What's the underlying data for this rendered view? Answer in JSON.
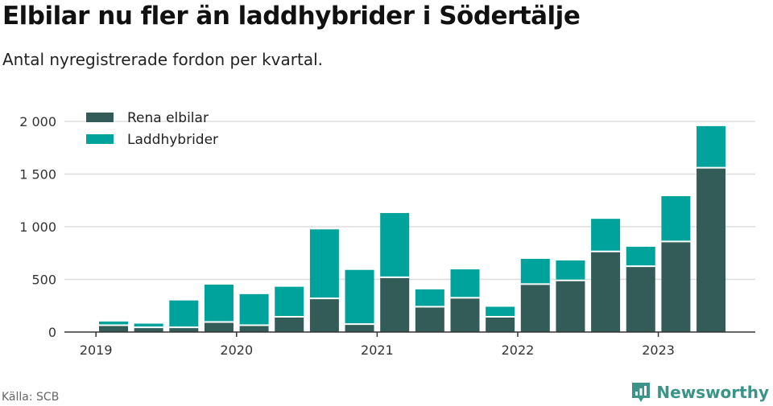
{
  "title": "Elbilar nu fler än laddhybrider i Södertälje",
  "subtitle": "Antal nyregistrerade fordon per kvartal.",
  "source": "Källa: SCB",
  "brand": "Newsworthy",
  "colors": {
    "ev": "#335c58",
    "phev": "#00a39b",
    "grid": "#dddddd",
    "axis": "#333333",
    "brand": "#3a9487"
  },
  "chart_data": {
    "type": "bar",
    "stacked": true,
    "title": "Elbilar nu fler än laddhybrider i Södertälje",
    "xlabel": "",
    "ylabel": "",
    "ylim": [
      0,
      2000
    ],
    "y_ticks": [
      0,
      500,
      1000,
      1500,
      2000
    ],
    "y_tick_labels": [
      "0",
      "500",
      "1 000",
      "1 500",
      "2 000"
    ],
    "x_tick_labels": [
      "2019",
      "2020",
      "2021",
      "2022",
      "2023"
    ],
    "x_tick_at_bar": [
      -0.5,
      3.5,
      7.5,
      11.5,
      15.5
    ],
    "categories": [
      "2019 Q2",
      "2019 Q3",
      "2019 Q4",
      "2020 Q1",
      "2020 Q2",
      "2020 Q3",
      "2020 Q4",
      "2021 Q1",
      "2021 Q2",
      "2021 Q3",
      "2021 Q4",
      "2022 Q1",
      "2022 Q2",
      "2022 Q3",
      "2022 Q4",
      "2023 Q1",
      "2023 Q2",
      "2023 Q3"
    ],
    "legend": [
      "Rena elbilar",
      "Laddhybrider"
    ],
    "legend_position": "top-left",
    "series": [
      {
        "name": "Rena elbilar",
        "values": [
          65,
          45,
          45,
          95,
          65,
          145,
          320,
          75,
          520,
          240,
          325,
          145,
          455,
          490,
          765,
          625,
          860,
          1560
        ]
      },
      {
        "name": "Laddhybrider",
        "values": [
          35,
          35,
          255,
          355,
          295,
          285,
          655,
          515,
          610,
          165,
          270,
          95,
          240,
          190,
          310,
          185,
          430,
          395
        ]
      }
    ]
  }
}
